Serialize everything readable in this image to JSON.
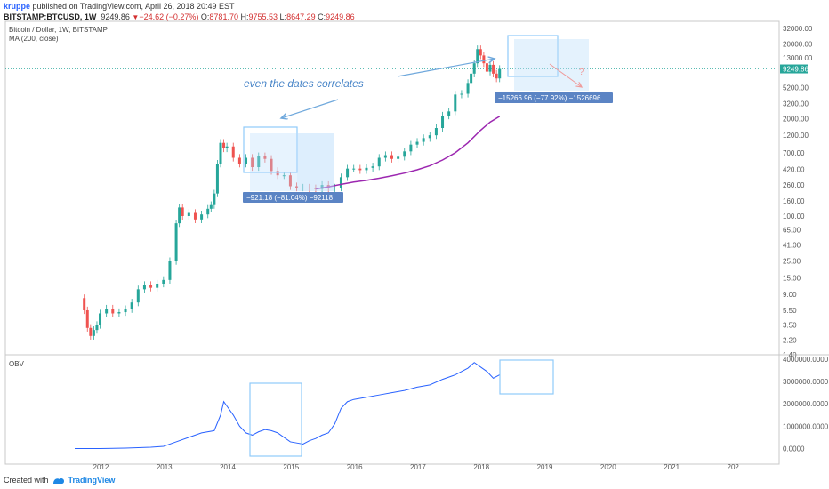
{
  "header": {
    "author": "kruppe",
    "published_text": "published on TradingView.com, April 26, 2018 20:49 EST",
    "symbol": "BITSTAMP:BTCUSD, 1W",
    "last": "9249.86",
    "change": "−24.62 (−0.27%)",
    "o_label": "O:",
    "o": "8781.70",
    "h_label": "H:",
    "h": "9755.53",
    "l_label": "L:",
    "l": "8647.29",
    "c_label": "C:",
    "c": "9249.86"
  },
  "footer": {
    "created_with": "Created with",
    "brand": "TradingView"
  },
  "colors": {
    "up": "#26a69a",
    "down": "#ef5350",
    "ma": "#9c27b0",
    "obv": "#2962ff",
    "annotation": "#90caf9",
    "note": "#4a86c8",
    "price_tag": "#26a69a",
    "measure_tag": "#5b84c4"
  },
  "chart_data": [
    {
      "type": "candlestick",
      "title": "Bitcoin / Dollar, 1W, BITSTAMP",
      "indicator_label": "MA (200, close)",
      "y_scale": "log",
      "ylim": [
        1.4,
        40000
      ],
      "y_ticks": [
        "32000.00",
        "20000.00",
        "13000.00",
        "9249.86",
        "5200.00",
        "3200.00",
        "2000.00",
        "1200.00",
        "700.00",
        "420.00",
        "260.00",
        "160.00",
        "100.00",
        "65.00",
        "41.00",
        "25.00",
        "15.00",
        "9.00",
        "5.50",
        "3.50",
        "2.20",
        "1.40"
      ],
      "x_ticks": [
        "2012",
        "2013",
        "2014",
        "2015",
        "2016",
        "2017",
        "2018",
        "2019",
        "2020",
        "2021",
        "202"
      ],
      "xlim": [
        2011.6,
        2022.0
      ],
      "price_weekly_close": [
        [
          2011.7,
          8.0
        ],
        [
          2011.75,
          5.5
        ],
        [
          2011.8,
          3.2
        ],
        [
          2011.85,
          2.5
        ],
        [
          2011.9,
          3.0
        ],
        [
          2011.95,
          3.5
        ],
        [
          2012.0,
          5.0
        ],
        [
          2012.1,
          5.8
        ],
        [
          2012.2,
          5.0
        ],
        [
          2012.3,
          5.2
        ],
        [
          2012.4,
          5.7
        ],
        [
          2012.5,
          7.0
        ],
        [
          2012.6,
          10.5
        ],
        [
          2012.7,
          12.0
        ],
        [
          2012.8,
          11.0
        ],
        [
          2012.9,
          12.5
        ],
        [
          2013.0,
          14.0
        ],
        [
          2013.1,
          25.0
        ],
        [
          2013.2,
          80.0
        ],
        [
          2013.25,
          130.0
        ],
        [
          2013.3,
          100.0
        ],
        [
          2013.4,
          110.0
        ],
        [
          2013.5,
          90.0
        ],
        [
          2013.6,
          105.0
        ],
        [
          2013.7,
          125.0
        ],
        [
          2013.75,
          140.0
        ],
        [
          2013.8,
          200.0
        ],
        [
          2013.85,
          500.0
        ],
        [
          2013.9,
          950.0
        ],
        [
          2013.95,
          800.0
        ],
        [
          2014.0,
          850.0
        ],
        [
          2014.1,
          600.0
        ],
        [
          2014.2,
          500.0
        ],
        [
          2014.3,
          600.0
        ],
        [
          2014.4,
          450.0
        ],
        [
          2014.5,
          630.0
        ],
        [
          2014.6,
          580.0
        ],
        [
          2014.7,
          400.0
        ],
        [
          2014.8,
          350.0
        ],
        [
          2014.9,
          350.0
        ],
        [
          2015.0,
          250.0
        ],
        [
          2015.1,
          240.0
        ],
        [
          2015.2,
          240.0
        ],
        [
          2015.3,
          235.0
        ],
        [
          2015.4,
          230.0
        ],
        [
          2015.5,
          260.0
        ],
        [
          2015.6,
          235.0
        ],
        [
          2015.7,
          240.0
        ],
        [
          2015.8,
          330.0
        ],
        [
          2015.9,
          430.0
        ],
        [
          2016.0,
          430.0
        ],
        [
          2016.1,
          410.0
        ],
        [
          2016.2,
          440.0
        ],
        [
          2016.3,
          460.0
        ],
        [
          2016.4,
          600.0
        ],
        [
          2016.5,
          650.0
        ],
        [
          2016.6,
          580.0
        ],
        [
          2016.7,
          620.0
        ],
        [
          2016.8,
          730.0
        ],
        [
          2016.9,
          900.0
        ],
        [
          2017.0,
          980.0
        ],
        [
          2017.1,
          1100.0
        ],
        [
          2017.2,
          1200.0
        ],
        [
          2017.3,
          1500.0
        ],
        [
          2017.4,
          2200.0
        ],
        [
          2017.5,
          2500.0
        ],
        [
          2017.6,
          4200.0
        ],
        [
          2017.7,
          4300.0
        ],
        [
          2017.8,
          6000.0
        ],
        [
          2017.85,
          8000.0
        ],
        [
          2017.9,
          11000.0
        ],
        [
          2017.95,
          17000.0
        ],
        [
          2018.0,
          14000.0
        ],
        [
          2018.05,
          11000.0
        ],
        [
          2018.1,
          8500.0
        ],
        [
          2018.15,
          10500.0
        ],
        [
          2018.2,
          8000.0
        ],
        [
          2018.25,
          6900.0
        ],
        [
          2018.3,
          9249.86
        ]
      ],
      "ma_200": [
        [
          2015.4,
          230.0
        ],
        [
          2015.6,
          245.0
        ],
        [
          2015.8,
          265.0
        ],
        [
          2016.0,
          285.0
        ],
        [
          2016.2,
          300.0
        ],
        [
          2016.4,
          320.0
        ],
        [
          2016.6,
          345.0
        ],
        [
          2016.8,
          375.0
        ],
        [
          2017.0,
          415.0
        ],
        [
          2017.2,
          470.0
        ],
        [
          2017.4,
          560.0
        ],
        [
          2017.6,
          700.0
        ],
        [
          2017.8,
          950.0
        ],
        [
          2018.0,
          1400.0
        ],
        [
          2018.15,
          1800.0
        ],
        [
          2018.3,
          2150.0
        ]
      ],
      "annotations": [
        {
          "type": "text",
          "text": "even the dates correlates"
        },
        {
          "type": "measure",
          "text": "−921.18 (−81.04%) −92118"
        },
        {
          "type": "measure",
          "text": "−15266.96 (−77.92%) −1526696"
        },
        {
          "type": "text",
          "text": "?"
        }
      ]
    },
    {
      "type": "line",
      "title": "OBV",
      "ylim": [
        -300000,
        4000000
      ],
      "y_ticks": [
        "4000000.0000",
        "3000000.0000",
        "2000000.0000",
        "1000000.0000",
        "0.0000"
      ],
      "series": [
        {
          "values": [
            [
              2011.6,
              0
            ],
            [
              2012.0,
              0
            ],
            [
              2012.4,
              20000
            ],
            [
              2012.8,
              60000
            ],
            [
              2013.0,
              100000
            ],
            [
              2013.2,
              300000
            ],
            [
              2013.4,
              500000
            ],
            [
              2013.6,
              700000
            ],
            [
              2013.8,
              800000
            ],
            [
              2013.9,
              1500000
            ],
            [
              2013.95,
              2100000
            ],
            [
              2014.0,
              1900000
            ],
            [
              2014.1,
              1500000
            ],
            [
              2014.2,
              1000000
            ],
            [
              2014.3,
              700000
            ],
            [
              2014.4,
              600000
            ],
            [
              2014.5,
              750000
            ],
            [
              2014.6,
              850000
            ],
            [
              2014.7,
              800000
            ],
            [
              2014.8,
              700000
            ],
            [
              2014.9,
              500000
            ],
            [
              2015.0,
              300000
            ],
            [
              2015.1,
              250000
            ],
            [
              2015.2,
              200000
            ],
            [
              2015.3,
              350000
            ],
            [
              2015.4,
              450000
            ],
            [
              2015.5,
              600000
            ],
            [
              2015.6,
              700000
            ],
            [
              2015.7,
              1100000
            ],
            [
              2015.8,
              1800000
            ],
            [
              2015.9,
              2100000
            ],
            [
              2016.0,
              2200000
            ],
            [
              2016.2,
              2300000
            ],
            [
              2016.4,
              2400000
            ],
            [
              2016.6,
              2500000
            ],
            [
              2016.8,
              2600000
            ],
            [
              2017.0,
              2750000
            ],
            [
              2017.2,
              2850000
            ],
            [
              2017.4,
              3100000
            ],
            [
              2017.6,
              3300000
            ],
            [
              2017.8,
              3600000
            ],
            [
              2017.9,
              3850000
            ],
            [
              2018.0,
              3650000
            ],
            [
              2018.1,
              3450000
            ],
            [
              2018.2,
              3150000
            ],
            [
              2018.3,
              3300000
            ]
          ]
        }
      ]
    }
  ]
}
